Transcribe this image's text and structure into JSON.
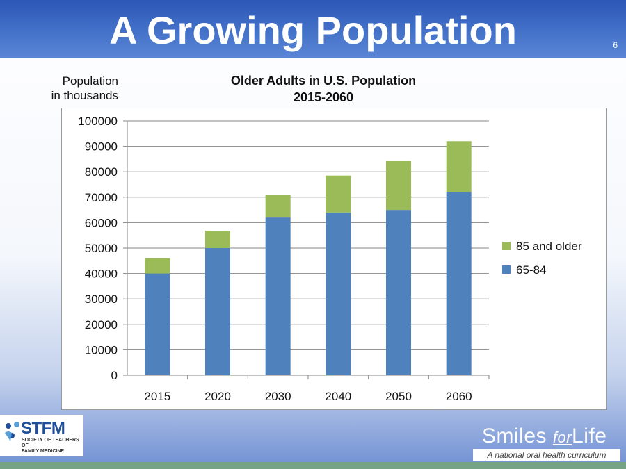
{
  "slide": {
    "title": "A Growing Population",
    "number": "6"
  },
  "colors": {
    "header": "#3f6cc6",
    "series_65_84": "#4f81bd",
    "series_85_plus": "#9bbb59"
  },
  "chart_data": {
    "type": "bar",
    "stacked": true,
    "title_line1": "Older Adults in U.S. Population",
    "title_line2": "2015-2060",
    "ylabel_line1": "Population",
    "ylabel_line2": "in thousands",
    "categories": [
      "2015",
      "2020",
      "2030",
      "2040",
      "2050",
      "2060"
    ],
    "series": [
      {
        "name": "65-84",
        "values": [
          40000,
          50000,
          62000,
          64000,
          65000,
          72000
        ]
      },
      {
        "name": "85 and older",
        "values": [
          6000,
          6800,
          9000,
          14500,
          19200,
          20000
        ]
      }
    ],
    "ylim": [
      0,
      100000
    ],
    "yticks": [
      "0",
      "10000",
      "20000",
      "30000",
      "40000",
      "50000",
      "60000",
      "70000",
      "80000",
      "90000",
      "100000"
    ],
    "grid": true,
    "legend": "right",
    "legend_order": [
      "85 and older",
      "65-84"
    ]
  },
  "logos": {
    "stfm": "STFM",
    "stfm_sub_line1": "SOCIETY OF TEACHERS OF",
    "stfm_sub_line2": "FAMILY MEDICINE",
    "smiles_a": "Smiles",
    "smiles_b": "for",
    "smiles_c": "Life",
    "smiles_tagline": "A national oral health curriculum"
  }
}
